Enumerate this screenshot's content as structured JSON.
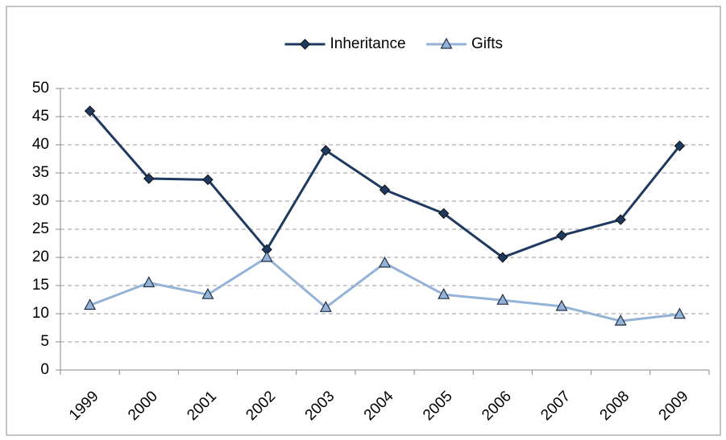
{
  "chart_data": {
    "type": "line",
    "categories": [
      "1999",
      "2000",
      "2001",
      "2002",
      "2003",
      "2004",
      "2005",
      "2006",
      "2007",
      "2008",
      "2009"
    ],
    "series": [
      {
        "name": "Inheritance",
        "color": "#1f3a60",
        "marker": "diamond",
        "values": [
          46,
          34,
          33.8,
          21.4,
          39,
          32,
          27.8,
          20,
          23.9,
          26.7,
          39.8
        ]
      },
      {
        "name": "Gifts",
        "color": "#95b3d7",
        "marker": "triangle",
        "values": [
          11.5,
          15.5,
          13.4,
          20,
          11.1,
          19,
          13.4,
          12.4,
          11.3,
          8.7,
          9.9
        ]
      }
    ],
    "ylim": [
      0,
      50
    ],
    "yticks": [
      0,
      5,
      10,
      15,
      20,
      25,
      30,
      35,
      40,
      45,
      50
    ],
    "grid": true,
    "legend": "top"
  }
}
